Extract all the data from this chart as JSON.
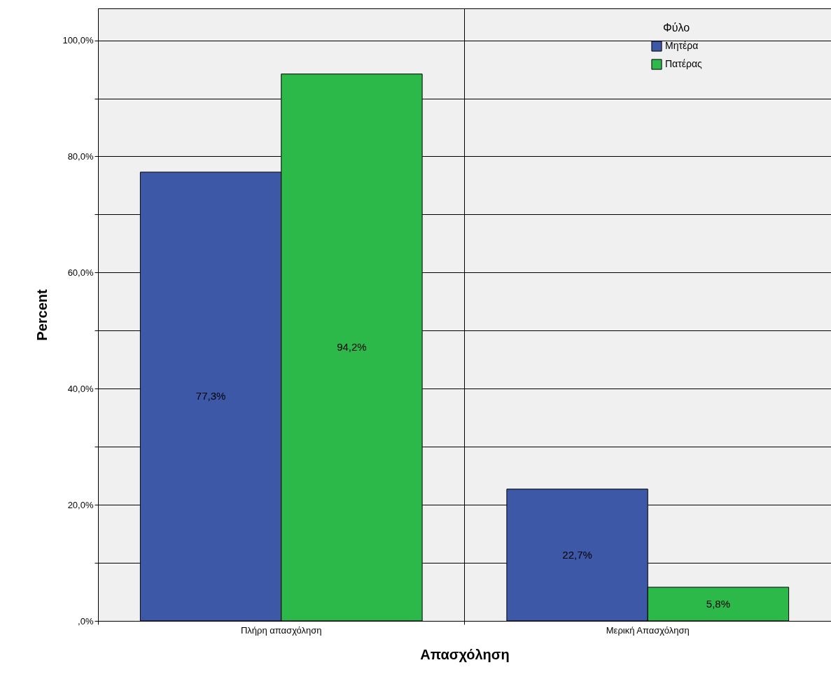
{
  "chart_data": {
    "type": "bar",
    "xlabel": "Απασχόληση",
    "ylabel": "Percent",
    "legend_title": "Φύλο",
    "categories": [
      "Πλήρη απασχόληση",
      "Μερική Απασχόληση"
    ],
    "series": [
      {
        "name": "Μητέρα",
        "color": "#3e58a8",
        "values": [
          77.3,
          22.7
        ],
        "value_labels": [
          "77,3%",
          "22,7%"
        ]
      },
      {
        "name": "Πατέρας",
        "color": "#2db84a",
        "values": [
          94.2,
          5.8
        ],
        "value_labels": [
          "94,2%",
          "5,8%"
        ]
      }
    ],
    "ylim": [
      0,
      105.5
    ],
    "yticks": [
      {
        "value": 0,
        "label": ",0%"
      },
      {
        "value": 10,
        "label": null
      },
      {
        "value": 20,
        "label": "20,0%"
      },
      {
        "value": 30,
        "label": null
      },
      {
        "value": 40,
        "label": "40,0%"
      },
      {
        "value": 50,
        "label": null
      },
      {
        "value": 60,
        "label": "60,0%"
      },
      {
        "value": 70,
        "label": null
      },
      {
        "value": 80,
        "label": "80,0%"
      },
      {
        "value": 90,
        "label": null
      },
      {
        "value": 100,
        "label": "100,0%"
      }
    ],
    "grid": true,
    "legend": "top right"
  }
}
